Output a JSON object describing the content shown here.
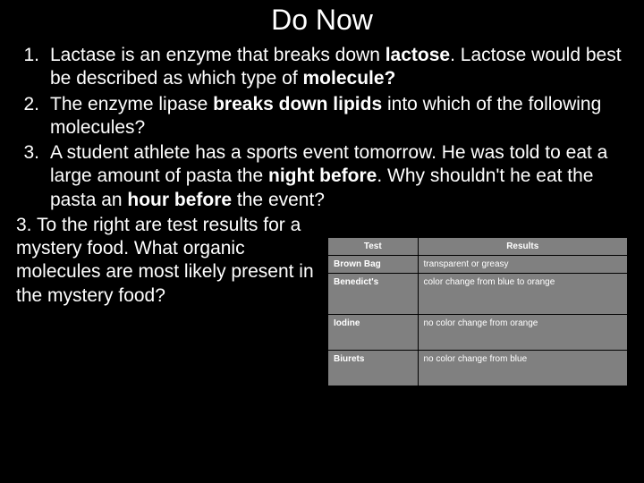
{
  "title": "Do Now",
  "items": [
    {
      "num": "1.",
      "html": "Lactase is an enzyme that breaks down <b>lactose</b>.  Lactose would best be described as which type of <b>molecule?</b>"
    },
    {
      "num": "2.",
      "html": "The enzyme lipase <b>breaks down lipids</b> into which of the following molecules?"
    },
    {
      "num": "3.",
      "html": "A student athlete has a sports event tomorrow.  He was told to eat a large amount of pasta the <b>night before</b>. Why shouldn't he eat the pasta an <b>hour before</b> the event?"
    }
  ],
  "bottom_text": "3. To the right are test results for a mystery food. What organic molecules are most likely present in the mystery food?",
  "table": {
    "headers": [
      "Test",
      "Results"
    ],
    "rows": [
      {
        "label": "Brown Bag",
        "result": "transparent or greasy",
        "cls": ""
      },
      {
        "label": "Benedict's",
        "result": "color change from blue to orange",
        "cls": "tall"
      },
      {
        "label": "Iodine",
        "result": "no color change from orange",
        "cls": "med"
      },
      {
        "label": "Biurets",
        "result": "no color change from blue",
        "cls": "med"
      }
    ],
    "header_bg": "#808080",
    "cell_bg": "#808080",
    "text_color": "#ffffff",
    "border_color": "#000000",
    "font_size": 10
  },
  "colors": {
    "background": "#000000",
    "text": "#ffffff"
  }
}
